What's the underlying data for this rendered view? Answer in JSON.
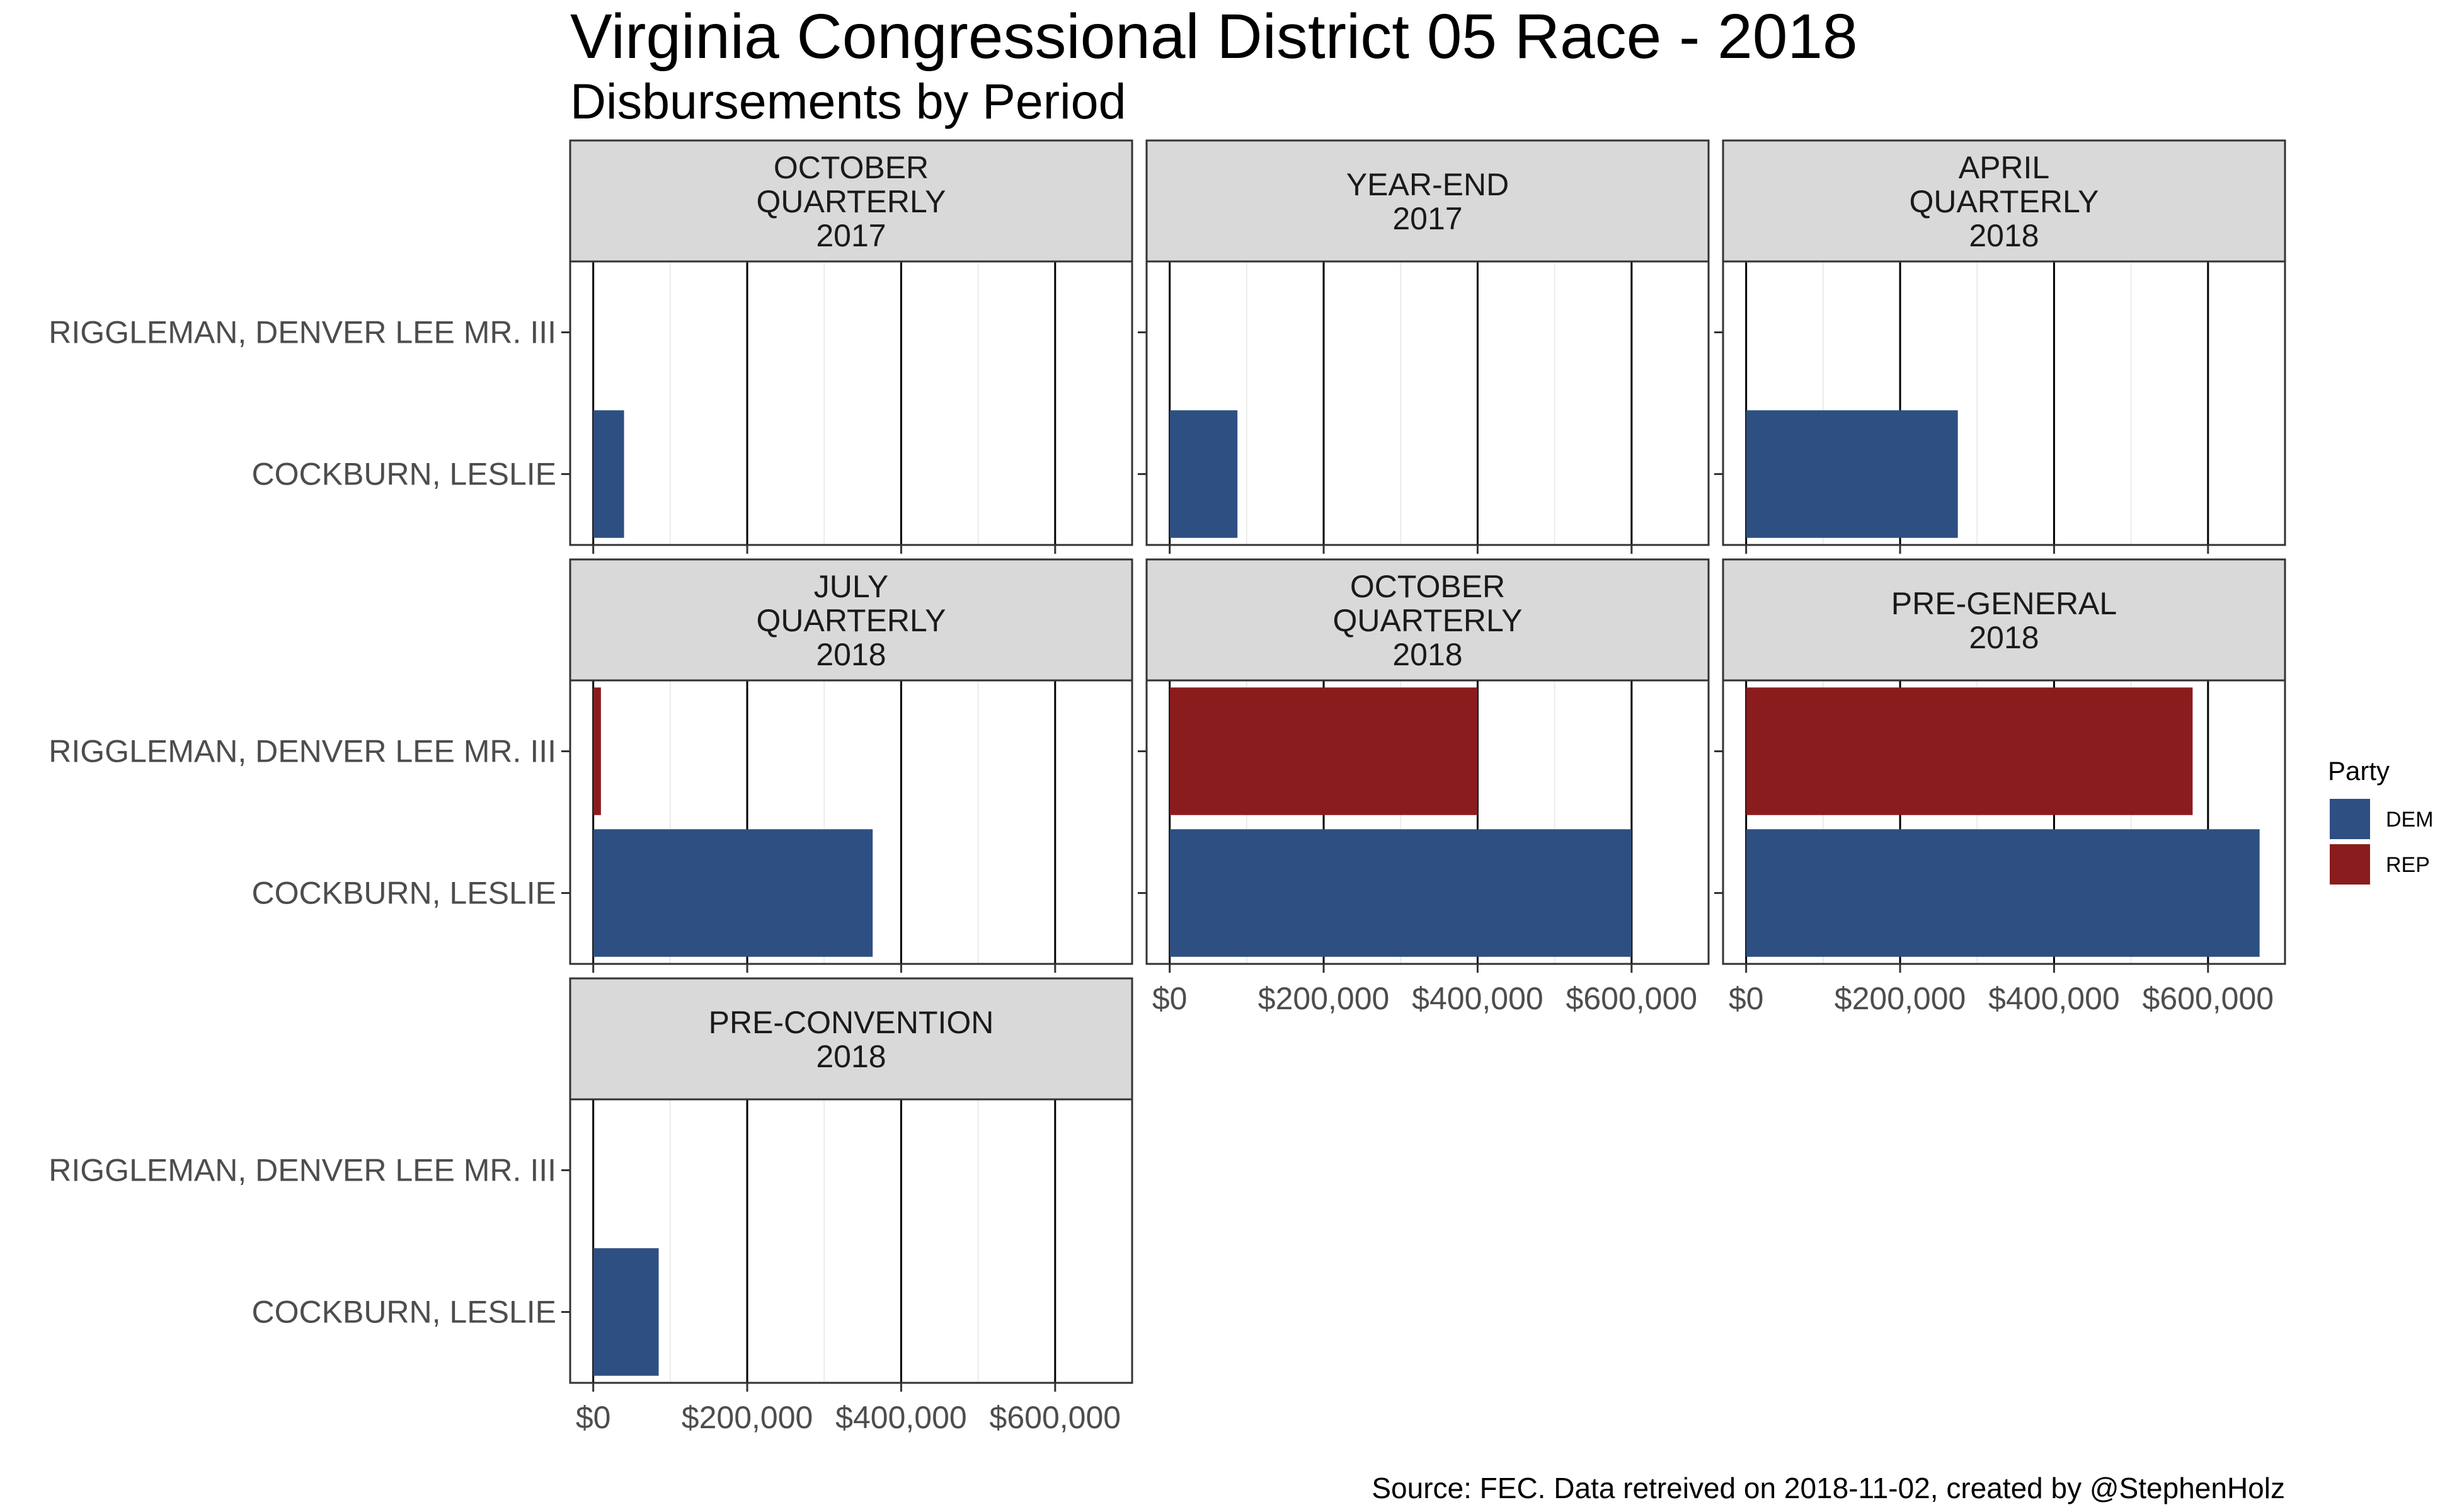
{
  "chart_data": {
    "type": "bar",
    "orientation": "horizontal",
    "title": "Virginia Congressional District 05 Race - 2018",
    "subtitle": "Disbursements by Period",
    "caption": "Source: FEC. Data retreived on 2018-11-02, created by @StephenHolz",
    "categories": [
      "RIGGLEMAN, DENVER LEE MR. III",
      "COCKBURN, LESLIE"
    ],
    "xlim": [
      -30000,
      700000
    ],
    "x_ticks": [
      0,
      200000,
      400000,
      600000
    ],
    "x_tick_labels": [
      "$0",
      "$200,000",
      "$400,000",
      "$600,000"
    ],
    "grid": true,
    "legend": {
      "title": "Party",
      "position": "right",
      "entries": [
        {
          "label": "DEM",
          "color": "#2E4F82"
        },
        {
          "label": "REP",
          "color": "#8B1C1E"
        }
      ]
    },
    "panels": [
      {
        "label": [
          "OCTOBER",
          "QUARTERLY",
          "2017"
        ],
        "values": [
          {
            "candidate": "COCKBURN, LESLIE",
            "party": "DEM",
            "value": 40000
          }
        ]
      },
      {
        "label": [
          "YEAR-END",
          "2017"
        ],
        "values": [
          {
            "candidate": "COCKBURN, LESLIE",
            "party": "DEM",
            "value": 88000
          }
        ]
      },
      {
        "label": [
          "APRIL",
          "QUARTERLY",
          "2018"
        ],
        "values": [
          {
            "candidate": "COCKBURN, LESLIE",
            "party": "DEM",
            "value": 275000
          }
        ]
      },
      {
        "label": [
          "JULY",
          "QUARTERLY",
          "2018"
        ],
        "values": [
          {
            "candidate": "RIGGLEMAN, DENVER LEE MR. III",
            "party": "REP",
            "value": 10000
          },
          {
            "candidate": "COCKBURN, LESLIE",
            "party": "DEM",
            "value": 363000
          }
        ]
      },
      {
        "label": [
          "OCTOBER",
          "QUARTERLY",
          "2018"
        ],
        "values": [
          {
            "candidate": "RIGGLEMAN, DENVER LEE MR. III",
            "party": "REP",
            "value": 400000
          },
          {
            "candidate": "COCKBURN, LESLIE",
            "party": "DEM",
            "value": 600000
          }
        ]
      },
      {
        "label": [
          "PRE-GENERAL",
          "2018"
        ],
        "values": [
          {
            "candidate": "RIGGLEMAN, DENVER LEE MR. III",
            "party": "REP",
            "value": 580000
          },
          {
            "candidate": "COCKBURN, LESLIE",
            "party": "DEM",
            "value": 667000
          }
        ]
      },
      {
        "label": [
          "PRE-CONVENTION",
          "2018"
        ],
        "values": [
          {
            "candidate": "COCKBURN, LESLIE",
            "party": "DEM",
            "value": 85000
          }
        ]
      }
    ]
  }
}
